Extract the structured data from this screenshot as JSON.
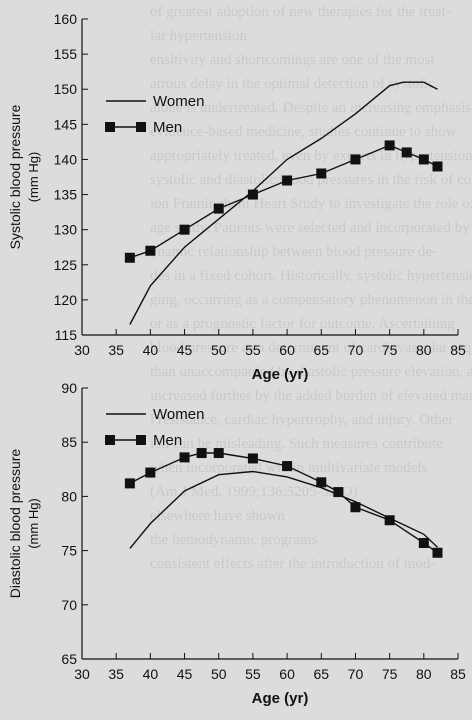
{
  "background_text": {
    "lines": [
      "of greatest adoption of new therapies for the treat-",
      "lar hypertension",
      "ensitivity and shortcomings are one of the most ",
      "atrous delay in the optimal detection of systolic",
      "alone is undertreated. Despite an increasing emphasis",
      "evidence-based medicine, studies continue to show",
      "appropriately treated, even by experts in hypertension",
      "systolic and diastolic blood pressures in the risk of coro-",
      "ion Framingham Heart Study to investigate the role of",
      "age study. Patients were selected and incorporated by",
      "ynamic relationship between blood pressure de-",
      "des in a fixed cohort. Historically, systolic hypertension",
      "ging, occurring as a compensatory phenomenon in the",
      "or as a prognostic factor for outcome. Ascertaining",
      "blood pressure as a determinant of cardiovascular seque-",
      "than unaccompanied by diastolic pressure elevation, and",
      "increased further by the added burden of elevated marks",
      "l resistance, cardiac hypertrophy, and injury. Other",
      "ion can be misleading. Such measures contribute",
      "when incorporated within multivariate models",
      "(Am J Med. 1999;136:5205-52-O)",
      "",
      "",
      "",
      "",
      "",
      "elsewhere have shown",
      "the hemodynamic programs",
      "consistent effects after the introduction of mod-"
    ]
  },
  "chart_data": [
    {
      "type": "line",
      "title": "",
      "xlabel": "Age (yr)",
      "ylabel": [
        "Systolic blood pressure",
        "(mm Hg)"
      ],
      "xlim": [
        30,
        85
      ],
      "ylim": [
        115,
        160
      ],
      "xticks": [
        "30",
        "35",
        "40",
        "45",
        "50",
        "55",
        "60",
        "65",
        "70",
        "75",
        "80",
        "85"
      ],
      "yticks": [
        "115",
        "120",
        "125",
        "130",
        "135",
        "140",
        "145",
        "150",
        "155",
        "160"
      ],
      "legend_position": "upper-left",
      "grid": false,
      "series": [
        {
          "name": "Women",
          "style": "line",
          "x": [
            37,
            40,
            45,
            50,
            55,
            60,
            65,
            70,
            75,
            77,
            80,
            82
          ],
          "y": [
            116.5,
            122,
            127.5,
            131.5,
            135.5,
            140,
            143,
            146.5,
            150.5,
            151,
            151,
            150
          ]
        },
        {
          "name": "Men",
          "style": "line-square",
          "x": [
            37,
            40,
            45,
            50,
            55,
            60,
            65,
            70,
            75,
            77.5,
            80,
            82
          ],
          "y": [
            126,
            127,
            130,
            133,
            135,
            137,
            138,
            140,
            142,
            141,
            140,
            139
          ]
        }
      ]
    },
    {
      "type": "line",
      "title": "",
      "xlabel": "Age (yr)",
      "ylabel": [
        "Diastolic blood pressure",
        "(mm Hg)"
      ],
      "xlim": [
        30,
        85
      ],
      "ylim": [
        65,
        90
      ],
      "xticks": [
        "30",
        "35",
        "40",
        "45",
        "50",
        "55",
        "60",
        "65",
        "70",
        "75",
        "80",
        "85"
      ],
      "yticks": [
        "65",
        "70",
        "75",
        "80",
        "85",
        "90"
      ],
      "legend_position": "upper-left",
      "grid": false,
      "series": [
        {
          "name": "Women",
          "style": "line",
          "x": [
            37,
            40,
            45,
            50,
            55,
            60,
            65,
            70,
            75,
            80,
            82
          ],
          "y": [
            75.2,
            77.5,
            80.5,
            82,
            82.3,
            81.8,
            80.8,
            79.5,
            78,
            76.5,
            75.3
          ]
        },
        {
          "name": "Men",
          "style": "line-square",
          "x": [
            37,
            40,
            45,
            47.5,
            50,
            55,
            60,
            65,
            67.5,
            70,
            75,
            80,
            82
          ],
          "y": [
            81.2,
            82.2,
            83.6,
            84,
            84,
            83.5,
            82.8,
            81.3,
            80.4,
            79,
            77.8,
            75.7,
            74.8
          ]
        }
      ]
    }
  ]
}
